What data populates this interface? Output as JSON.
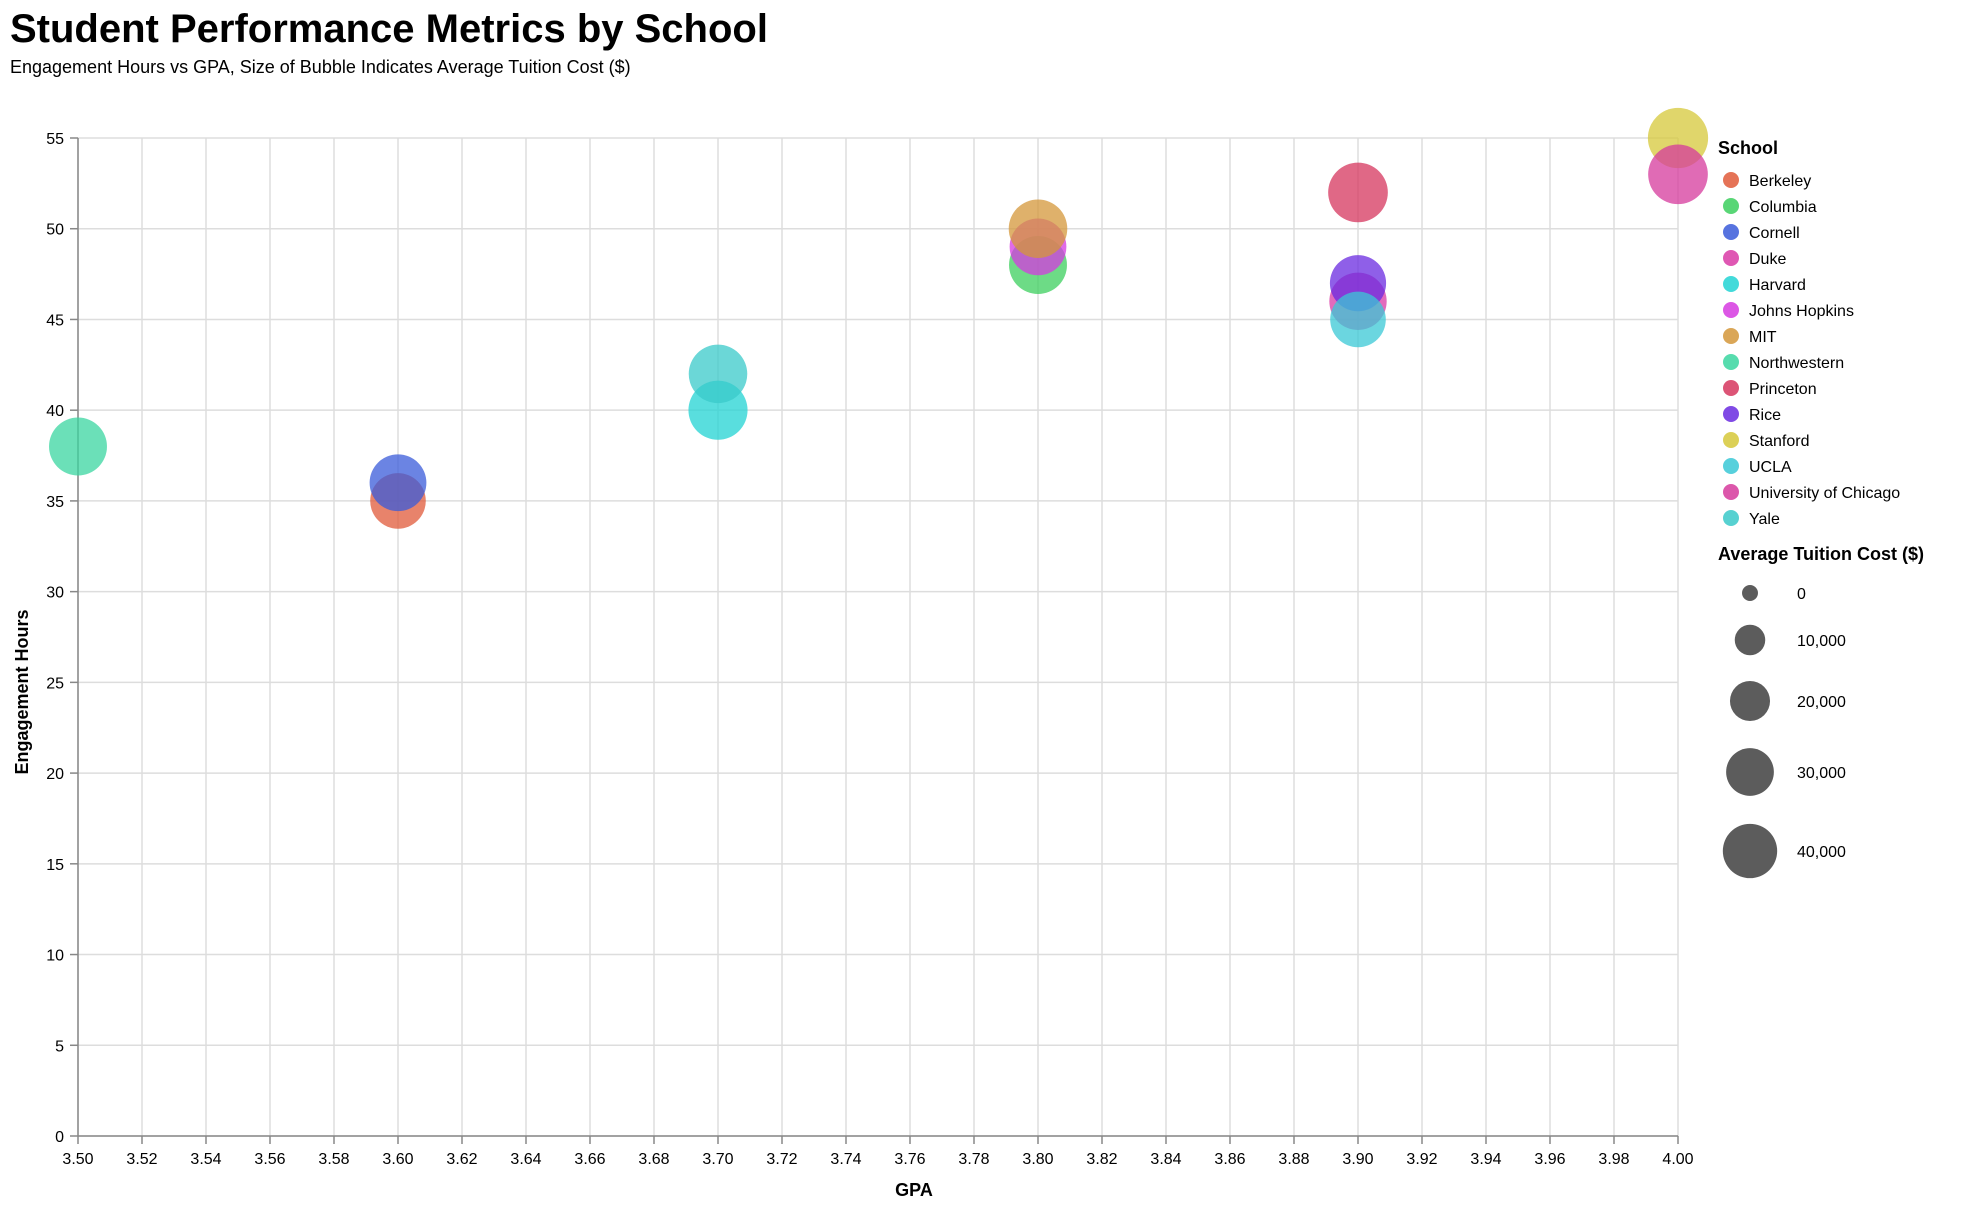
{
  "chart_data": {
    "type": "scatter",
    "title": "Student Performance Metrics by School",
    "subtitle": "Engagement Hours vs GPA, Size of Bubble Indicates Average Tuition Cost ($)",
    "xlabel": "GPA",
    "ylabel": "Engagement Hours",
    "xlim": [
      3.5,
      4.0
    ],
    "ylim": [
      0,
      55
    ],
    "x_ticks": [
      "3.50",
      "3.52",
      "3.54",
      "3.56",
      "3.58",
      "3.60",
      "3.62",
      "3.64",
      "3.66",
      "3.68",
      "3.70",
      "3.72",
      "3.74",
      "3.76",
      "3.78",
      "3.80",
      "3.82",
      "3.84",
      "3.86",
      "3.88",
      "3.90",
      "3.92",
      "3.94",
      "3.96",
      "3.98",
      "4.00"
    ],
    "y_ticks": [
      "0",
      "5",
      "10",
      "15",
      "20",
      "25",
      "30",
      "35",
      "40",
      "45",
      "50",
      "55"
    ],
    "grid": true,
    "legend_placement": "right",
    "color_legend_title": "School",
    "size_legend_title": "Average Tuition Cost ($)",
    "size_legend": [
      {
        "value": 0,
        "label": "0"
      },
      {
        "value": 10000,
        "label": "10,000"
      },
      {
        "value": 20000,
        "label": "20,000"
      },
      {
        "value": 30000,
        "label": "30,000"
      },
      {
        "value": 40000,
        "label": "40,000"
      }
    ],
    "series": [
      {
        "name": "Berkeley",
        "color": "#e05a3a",
        "points": [
          {
            "gpa": 3.6,
            "hours": 35,
            "tuition": 42000
          }
        ]
      },
      {
        "name": "Columbia",
        "color": "#3ccf5e",
        "points": [
          {
            "gpa": 3.8,
            "hours": 48,
            "tuition": 46000
          }
        ]
      },
      {
        "name": "Cornell",
        "color": "#3a5bd9",
        "points": [
          {
            "gpa": 3.6,
            "hours": 36,
            "tuition": 44000
          }
        ]
      },
      {
        "name": "Duke",
        "color": "#d93aa6",
        "points": [
          {
            "gpa": 3.9,
            "hours": 46,
            "tuition": 45000
          }
        ]
      },
      {
        "name": "Harvard",
        "color": "#22d3d3",
        "points": [
          {
            "gpa": 3.7,
            "hours": 40,
            "tuition": 48000
          }
        ]
      },
      {
        "name": "Johns Hopkins",
        "color": "#d63ae0",
        "points": [
          {
            "gpa": 3.8,
            "hours": 49,
            "tuition": 44000
          }
        ]
      },
      {
        "name": "MIT",
        "color": "#d4973a",
        "points": [
          {
            "gpa": 3.8,
            "hours": 50,
            "tuition": 47000
          }
        ]
      },
      {
        "name": "Northwestern",
        "color": "#3ad6a0",
        "points": [
          {
            "gpa": 3.5,
            "hours": 38,
            "tuition": 46000
          }
        ]
      },
      {
        "name": "Princeton",
        "color": "#d6365e",
        "points": [
          {
            "gpa": 3.9,
            "hours": 52,
            "tuition": 49000
          }
        ]
      },
      {
        "name": "Rice",
        "color": "#6a2ae0",
        "points": [
          {
            "gpa": 3.9,
            "hours": 47,
            "tuition": 43000
          }
        ]
      },
      {
        "name": "Stanford",
        "color": "#d6c83a",
        "points": [
          {
            "gpa": 4.0,
            "hours": 55,
            "tuition": 50000
          }
        ]
      },
      {
        "name": "UCLA",
        "color": "#3ac8d6",
        "points": [
          {
            "gpa": 3.9,
            "hours": 45,
            "tuition": 42000
          }
        ]
      },
      {
        "name": "University of Chicago",
        "color": "#d63a9c",
        "points": [
          {
            "gpa": 4.0,
            "hours": 53,
            "tuition": 49000
          }
        ]
      },
      {
        "name": "Yale",
        "color": "#3ac9c9",
        "points": [
          {
            "gpa": 3.7,
            "hours": 42,
            "tuition": 47000
          }
        ]
      }
    ]
  }
}
